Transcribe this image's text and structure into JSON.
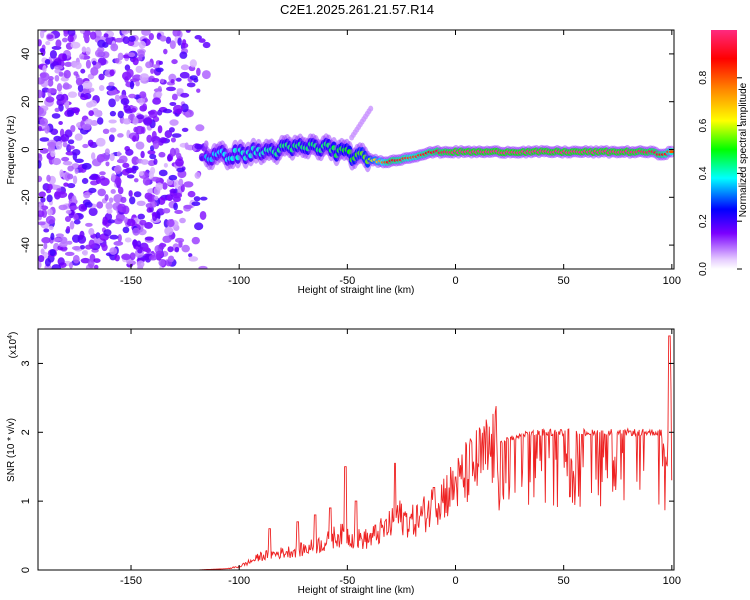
{
  "title": "C2E1.2025.261.21.57.R14",
  "chart_data": [
    {
      "type": "heatmap",
      "xlabel": "Height of straight line (km)",
      "ylabel": "Frequency (Hz)",
      "xlim": [
        -193,
        101
      ],
      "ylim": [
        -50,
        50
      ],
      "xticks": [
        -150,
        -100,
        -50,
        0,
        50,
        100
      ],
      "yticks": [
        -40,
        -20,
        0,
        20,
        40
      ],
      "colorbar": {
        "label": "Normalized spectral amplitude",
        "range": [
          0,
          1
        ],
        "ticks": [
          0.0,
          0.2,
          0.4,
          0.6,
          0.8
        ]
      },
      "ridge": {
        "x": [
          -115,
          -100,
          -90,
          -80,
          -70,
          -60,
          -50,
          -40,
          -35,
          -30,
          -25,
          -20,
          -15,
          -10,
          -5,
          0,
          10,
          20,
          40,
          60,
          80,
          90,
          95,
          100
        ],
        "freq": [
          -3,
          -2,
          -1,
          0,
          1,
          1,
          -2,
          -4,
          -5,
          -5,
          -4,
          -3,
          -2,
          -1,
          -1,
          -1,
          -1,
          -1,
          -1,
          -1,
          -1,
          -1,
          -2,
          -1
        ],
        "amplitude": [
          0.35,
          0.4,
          0.4,
          0.45,
          0.45,
          0.45,
          0.5,
          0.55,
          0.7,
          0.9,
          0.85,
          0.8,
          0.85,
          0.9,
          0.95,
          1.0,
          1.0,
          1.0,
          1.0,
          1.0,
          1.0,
          0.95,
          0.9,
          0.8
        ]
      },
      "noise_region": {
        "x": [
          -193,
          -115
        ],
        "freq": [
          -50,
          50
        ],
        "amplitude": [
          0.05,
          0.2
        ]
      }
    },
    {
      "type": "line",
      "xlabel": "Height of straight line (km)",
      "ylabel": "SNR (10 * v/v)",
      "multiplier": "(x10",
      "multiplier_exp": "4",
      "xlim": [
        -193,
        101
      ],
      "ylim": [
        0,
        3.5
      ],
      "xticks": [
        -150,
        -100,
        -50,
        0,
        50,
        100
      ],
      "yticks": [
        0,
        1,
        2,
        3
      ],
      "color": "#ee2222",
      "envelope": {
        "x": [
          -193,
          -120,
          -105,
          -100,
          -95,
          -90,
          -80,
          -70,
          -60,
          -55,
          -50,
          -45,
          -40,
          -35,
          -30,
          -27,
          -25,
          -20,
          -15,
          -10,
          -5,
          0,
          5,
          10,
          15,
          20,
          25,
          30,
          40,
          50,
          60,
          70,
          80,
          90,
          95,
          98,
          99,
          100
        ],
        "y": [
          0,
          0,
          0.02,
          0.05,
          0.12,
          0.2,
          0.25,
          0.3,
          0.4,
          0.5,
          0.5,
          0.45,
          0.45,
          0.55,
          0.65,
          0.8,
          0.75,
          0.7,
          0.8,
          0.95,
          1.1,
          1.2,
          1.4,
          1.55,
          1.7,
          1.8,
          1.9,
          1.95,
          2.0,
          2.0,
          2.0,
          2.0,
          2.0,
          2.0,
          2.0,
          1.5,
          3.3,
          2.2
        ]
      },
      "spikes": [
        {
          "x": -86,
          "y": 0.6
        },
        {
          "x": -73,
          "y": 0.7
        },
        {
          "x": -65,
          "y": 0.8
        },
        {
          "x": -58,
          "y": 0.9
        },
        {
          "x": -51,
          "y": 1.5
        },
        {
          "x": -46,
          "y": 1.0
        },
        {
          "x": -28,
          "y": 1.55
        },
        {
          "x": -10,
          "y": 1.2
        },
        {
          "x": 0,
          "y": 1.35
        },
        {
          "x": 99,
          "y": 3.4
        }
      ]
    }
  ]
}
